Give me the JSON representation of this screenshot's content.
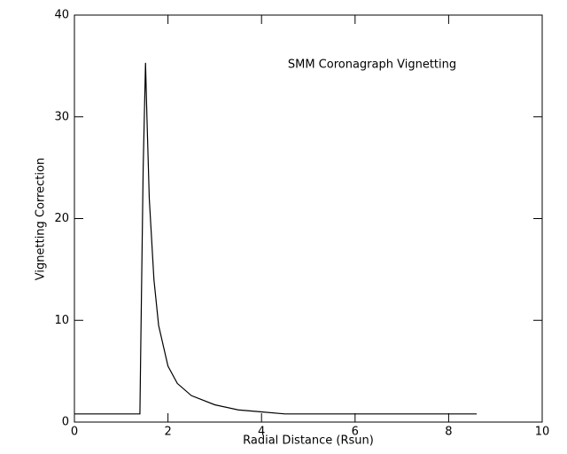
{
  "chart_data": {
    "type": "line",
    "annotation": "SMM Coronagraph Vignetting",
    "x_label": "Radial Distance (Rsun)",
    "y_label": "Vignetting Correction",
    "x": [
      0,
      1.4,
      1.42,
      1.47,
      1.52,
      1.55,
      1.6,
      1.7,
      1.8,
      2.0,
      2.2,
      2.5,
      3.0,
      3.5,
      4.0,
      4.5,
      5,
      6,
      7,
      8,
      8.6
    ],
    "values": [
      0.8,
      0.8,
      8,
      25,
      35.3,
      30,
      22,
      14,
      9.5,
      5.5,
      3.8,
      2.6,
      1.7,
      1.2,
      1.0,
      0.8,
      0.8,
      0.8,
      0.8,
      0.8,
      0.8
    ],
    "color": "#000000",
    "xlim": [
      0,
      10
    ],
    "xticks": [
      0,
      2,
      4,
      6,
      8,
      10
    ],
    "ylim": [
      0,
      40
    ],
    "yticks": [
      0,
      10,
      20,
      30,
      40
    ]
  }
}
